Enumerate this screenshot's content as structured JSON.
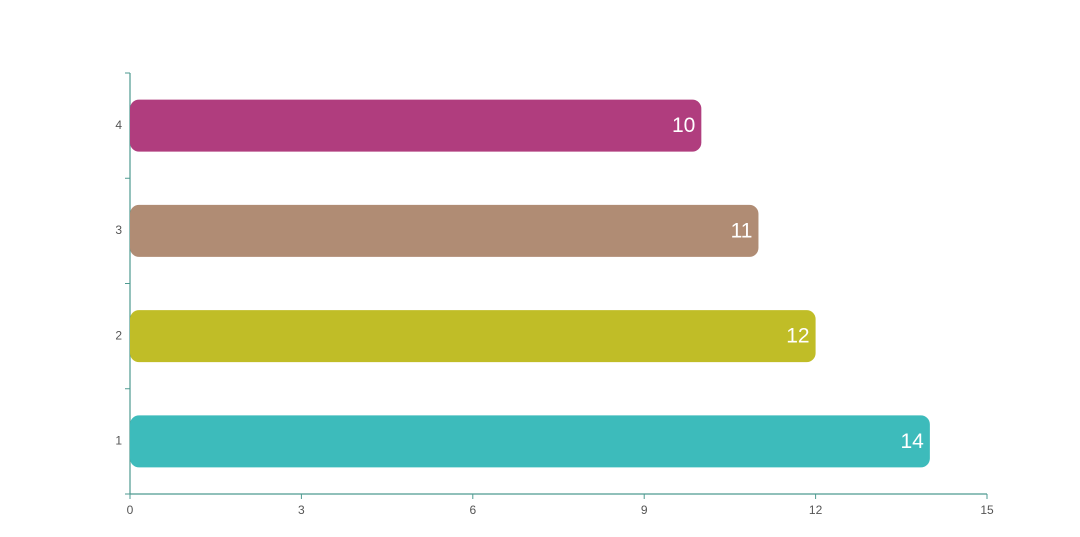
{
  "chart_data": {
    "type": "bar",
    "orientation": "horizontal",
    "categories": [
      "1",
      "2",
      "3",
      "4"
    ],
    "values": [
      14,
      12,
      11,
      10
    ],
    "colors": [
      "#3dbbbb",
      "#c0bd27",
      "#b08c74",
      "#b03d7e"
    ],
    "xlim": [
      0,
      15
    ],
    "xticks": [
      0,
      3,
      6,
      9,
      12,
      15
    ],
    "axis_color": "#4e9a90"
  }
}
